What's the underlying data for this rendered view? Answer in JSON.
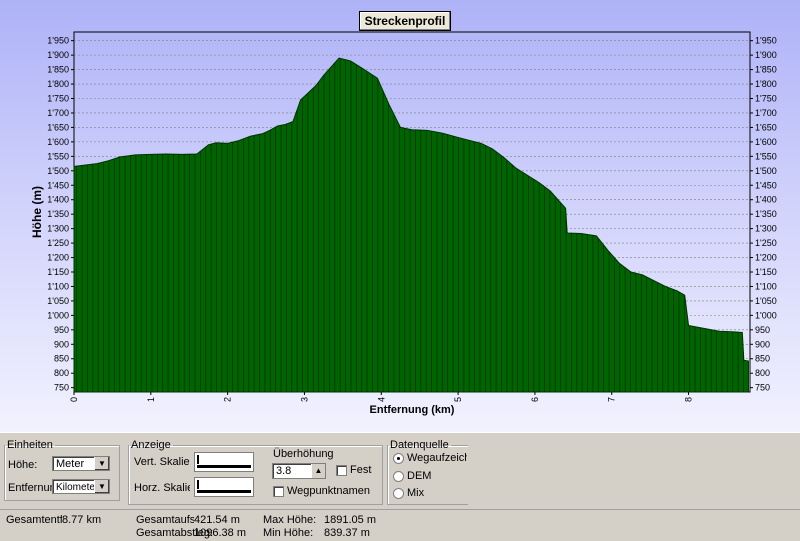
{
  "chart_data": {
    "type": "area",
    "title": "Streckenprofil",
    "xlabel": "Entfernung (km)",
    "ylabel": "Höhe (m)",
    "xlim": [
      0,
      8.8
    ],
    "ylim": [
      735,
      1980
    ],
    "x_ticks": [
      "0",
      "1",
      "2",
      "3",
      "4",
      "5",
      "6",
      "7",
      "8"
    ],
    "y_ticks": [
      "750",
      "800",
      "850",
      "900",
      "950",
      "1'000",
      "1'050",
      "1'100",
      "1'150",
      "1'200",
      "1'250",
      "1'300",
      "1'350",
      "1'400",
      "1'450",
      "1'500",
      "1'550",
      "1'600",
      "1'650",
      "1'700",
      "1'750",
      "1'800",
      "1'850",
      "1'900",
      "1'950"
    ],
    "grid": true,
    "color": "#006400",
    "x": [
      0,
      0.15,
      0.3,
      0.45,
      0.6,
      0.8,
      1.0,
      1.2,
      1.4,
      1.6,
      1.75,
      1.85,
      2.0,
      2.15,
      2.3,
      2.45,
      2.55,
      2.65,
      2.75,
      2.85,
      2.95,
      3.05,
      3.15,
      3.25,
      3.35,
      3.45,
      3.6,
      3.75,
      3.95,
      4.1,
      4.25,
      4.4,
      4.6,
      4.8,
      5.0,
      5.15,
      5.3,
      5.45,
      5.6,
      5.75,
      5.9,
      6.05,
      6.2,
      6.4,
      6.42,
      6.6,
      6.8,
      6.95,
      7.1,
      7.25,
      7.4,
      7.55,
      7.7,
      7.85,
      7.95,
      8.0,
      8.2,
      8.4,
      8.6,
      8.7,
      8.72,
      8.78
    ],
    "values": [
      1515,
      1520,
      1525,
      1535,
      1548,
      1555,
      1557,
      1558,
      1557,
      1558,
      1590,
      1597,
      1595,
      1605,
      1620,
      1628,
      1640,
      1655,
      1660,
      1670,
      1745,
      1770,
      1795,
      1830,
      1860,
      1890,
      1880,
      1855,
      1820,
      1730,
      1650,
      1642,
      1640,
      1630,
      1615,
      1605,
      1595,
      1575,
      1545,
      1510,
      1485,
      1460,
      1430,
      1370,
      1285,
      1283,
      1275,
      1225,
      1180,
      1150,
      1140,
      1120,
      1100,
      1085,
      1070,
      965,
      955,
      945,
      943,
      941,
      845,
      842
    ]
  },
  "einheiten": {
    "legend": "Einheiten",
    "hoehe_label": "Höhe:",
    "hoehe_value": "Meter",
    "entfernung_label": "Entfernung:",
    "entfernung_value": "Kilometer"
  },
  "anzeige": {
    "legend": "Anzeige",
    "vert_label": "Vert. Skalierung",
    "horz_label": "Horz. Skalierung",
    "ueberhoehung_label": "Überhöhung",
    "ueberhoehung_value": "3.8",
    "fest_label": "Festsetzen",
    "wegpunkt_label": "Wegpunktnamen"
  },
  "datenquelle": {
    "legend": "Datenquelle",
    "options": [
      "Wegaufzeichnung",
      "DEM",
      "Mix"
    ],
    "selected": "Wegaufzeichnung"
  },
  "stats": {
    "gesamtentfernung_label": "Gesamtentfernung:",
    "gesamtentfernung_value": "8.77 km",
    "aufstieg_label": "Gesamtaufstieg:",
    "aufstieg_value": "421.54 m",
    "abstieg_label": "Gesamtabstieg:",
    "abstieg_value": "1096.38 m",
    "max_label": "Max Höhe:",
    "max_value": "1891.05 m",
    "min_label": "Min Höhe:",
    "min_value": "839.37 m"
  }
}
